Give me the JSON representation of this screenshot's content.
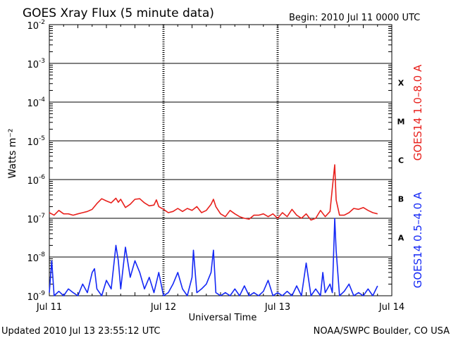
{
  "header": {
    "title": "GOES Xray Flux (5 minute data)",
    "begin": "Begin:  2010 Jul 11 0000 UTC"
  },
  "footer": {
    "updated": "Updated 2010 Jul 13 23:55:12 UTC",
    "credit": "NOAA/SWPC Boulder, CO USA"
  },
  "chart_data": {
    "type": "line",
    "title": "GOES Xray Flux (5 minute data)",
    "xlabel": "Universal Time",
    "ylabel": "Watts m⁻²",
    "yscale": "log",
    "ylim": [
      1e-09,
      0.01
    ],
    "xlim": [
      0,
      72
    ],
    "x_unit": "hours since 2010 Jul 11 0000 UTC",
    "grid": true,
    "x_ticks": [
      {
        "x": 0,
        "label": "Jul 11"
      },
      {
        "x": 24,
        "label": "Jul 12"
      },
      {
        "x": 48,
        "label": "Jul 13"
      },
      {
        "x": 72,
        "label": "Jul 14"
      }
    ],
    "y_ticks": [
      {
        "exp": -9,
        "label": "10",
        "sup": "-9"
      },
      {
        "exp": -8,
        "label": "10",
        "sup": "-8"
      },
      {
        "exp": -7,
        "label": "10",
        "sup": "-7"
      },
      {
        "exp": -6,
        "label": "10",
        "sup": "-6"
      },
      {
        "exp": -5,
        "label": "10",
        "sup": "-5"
      },
      {
        "exp": -4,
        "label": "10",
        "sup": "-4"
      },
      {
        "exp": -3,
        "label": "10",
        "sup": "-3"
      },
      {
        "exp": -2,
        "label": "10",
        "sup": "-2"
      }
    ],
    "flare_classes": [
      {
        "label": "A",
        "value": 1e-08
      },
      {
        "label": "B",
        "value": 1e-07
      },
      {
        "label": "C",
        "value": 1e-06
      },
      {
        "label": "M",
        "value": 1e-05
      },
      {
        "label": "X",
        "value": 0.0001
      }
    ],
    "series": [
      {
        "name": "GOES14 1.0–8.0 A",
        "color": "#e8201c",
        "x": [
          0,
          1,
          2,
          3,
          4,
          5,
          6,
          7,
          8,
          9,
          10,
          11,
          12,
          13,
          14,
          14.5,
          15,
          16,
          17,
          18,
          19,
          20,
          21,
          22,
          22.5,
          23,
          24,
          25,
          26,
          27,
          28,
          29,
          30,
          31,
          32,
          33,
          34,
          34.5,
          35,
          36,
          37,
          38,
          39,
          40,
          41,
          42,
          43,
          44,
          45,
          46,
          47,
          48,
          49,
          50,
          51,
          52,
          53,
          54,
          55,
          56,
          57,
          58,
          59,
          59.5,
          60,
          60.3,
          61,
          62,
          63,
          64,
          65,
          66,
          67,
          68,
          69
        ],
        "values": [
          1.4e-07,
          1.2e-07,
          1.6e-07,
          1.3e-07,
          1.3e-07,
          1.2e-07,
          1.3e-07,
          1.4e-07,
          1.5e-07,
          1.7e-07,
          2.4e-07,
          3.2e-07,
          2.8e-07,
          2.5e-07,
          3.3e-07,
          2.6e-07,
          3.1e-07,
          1.9e-07,
          2.3e-07,
          3.1e-07,
          3.2e-07,
          2.5e-07,
          2.1e-07,
          2.2e-07,
          3e-07,
          2e-07,
          1.7e-07,
          1.4e-07,
          1.5e-07,
          1.8e-07,
          1.5e-07,
          1.8e-07,
          1.6e-07,
          2e-07,
          1.4e-07,
          1.6e-07,
          2.3e-07,
          3.1e-07,
          2e-07,
          1.3e-07,
          1.1e-07,
          1.6e-07,
          1.3e-07,
          1.1e-07,
          1e-07,
          9.5e-08,
          1.2e-07,
          1.2e-07,
          1.3e-07,
          1.1e-07,
          1.3e-07,
          1e-07,
          1.4e-07,
          1.1e-07,
          1.7e-07,
          1.2e-07,
          1e-07,
          1.3e-07,
          9e-08,
          1e-07,
          1.6e-07,
          1.1e-07,
          1.5e-07,
          6e-07,
          2.4e-06,
          3e-07,
          1.2e-07,
          1.2e-07,
          1.4e-07,
          1.8e-07,
          1.7e-07,
          1.9e-07,
          1.6e-07,
          1.4e-07,
          1.3e-07
        ]
      },
      {
        "name": "GOES14 0.5–4.0 A",
        "color": "#1428f5",
        "x": [
          0,
          0.5,
          1,
          2,
          3,
          4,
          5,
          6,
          7,
          8,
          9,
          9.5,
          10,
          11,
          12,
          13,
          14,
          14.5,
          15,
          16,
          17,
          18,
          19,
          20,
          21,
          22,
          23,
          24,
          25,
          26,
          27,
          28,
          29,
          30,
          30.3,
          31,
          32,
          33,
          34,
          34.5,
          35,
          36,
          37,
          38,
          39,
          40,
          41,
          42,
          43,
          44,
          45,
          46,
          47,
          48,
          49,
          50,
          51,
          52,
          53,
          54,
          55,
          56,
          57,
          57.5,
          58,
          59,
          59.5,
          59.8,
          60,
          60.3,
          61,
          62,
          63,
          64,
          65,
          66,
          67,
          68,
          69
        ],
        "values": [
          1.2e-09,
          8e-09,
          1e-09,
          1.3e-09,
          1e-09,
          1.5e-09,
          1.2e-09,
          1e-09,
          2e-09,
          1.2e-09,
          4e-09,
          5e-09,
          1.5e-09,
          1e-09,
          2.5e-09,
          1.5e-09,
          2e-08,
          8e-09,
          1.5e-09,
          1.8e-08,
          3e-09,
          8e-09,
          4e-09,
          1.5e-09,
          3e-09,
          1.2e-09,
          4e-09,
          1e-09,
          1.2e-09,
          2e-09,
          4e-09,
          1.5e-09,
          1e-09,
          3e-09,
          1.5e-08,
          1.2e-09,
          1.5e-09,
          2e-09,
          4e-09,
          1.5e-08,
          1.2e-09,
          1e-09,
          1.2e-09,
          1e-09,
          1.5e-09,
          1e-09,
          1.8e-09,
          1e-09,
          1.2e-09,
          1e-09,
          1.3e-09,
          2.5e-09,
          1e-09,
          1.2e-09,
          1e-09,
          1.3e-09,
          1e-09,
          1.8e-09,
          1e-09,
          7e-09,
          1e-09,
          1.5e-09,
          1e-09,
          4e-09,
          1.2e-09,
          2e-09,
          1.2e-09,
          1.5e-08,
          1e-07,
          1.5e-08,
          1e-09,
          1.3e-09,
          2e-09,
          1e-09,
          1.2e-09,
          1e-09,
          1.5e-09,
          1e-09,
          1.8e-09
        ]
      }
    ]
  }
}
